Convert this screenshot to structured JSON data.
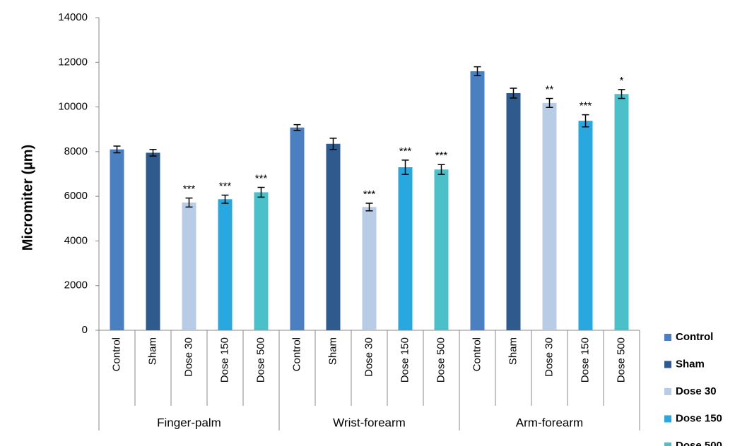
{
  "chart_data": {
    "type": "bar",
    "y_label": "Micromiter (µm)",
    "categories": [
      "Finger-palm",
      "Wrist-forearm",
      "Arm-forearm"
    ],
    "series": [
      {
        "name": "Control",
        "color": "#4a7fc1",
        "values": [
          8100,
          9080,
          11600
        ],
        "errors": [
          150,
          130,
          200
        ],
        "annotations": [
          null,
          null,
          null
        ]
      },
      {
        "name": "Sham",
        "color": "#2e5a8e",
        "values": [
          7950,
          8350,
          10620
        ],
        "errors": [
          150,
          250,
          220
        ],
        "annotations": [
          null,
          null,
          null
        ]
      },
      {
        "name": "Dose 30",
        "color": "#b8cce6",
        "values": [
          5720,
          5520,
          10180
        ],
        "errors": [
          200,
          170,
          200
        ],
        "annotations": [
          "***",
          "***",
          "**"
        ]
      },
      {
        "name": "Dose 150",
        "color": "#29a8e0",
        "values": [
          5870,
          7300,
          9380
        ],
        "errors": [
          180,
          320,
          270
        ],
        "annotations": [
          "***",
          "***",
          "***"
        ]
      },
      {
        "name": "Dose 500",
        "color": "#4bc0c8",
        "values": [
          6180,
          7200,
          10580
        ],
        "errors": [
          220,
          220,
          200
        ],
        "annotations": [
          "***",
          "***",
          "*"
        ]
      }
    ],
    "ylim": [
      0,
      14000
    ],
    "yticks": [
      0,
      2000,
      4000,
      6000,
      8000,
      10000,
      12000,
      14000
    ],
    "grid": false,
    "legend": "right"
  }
}
